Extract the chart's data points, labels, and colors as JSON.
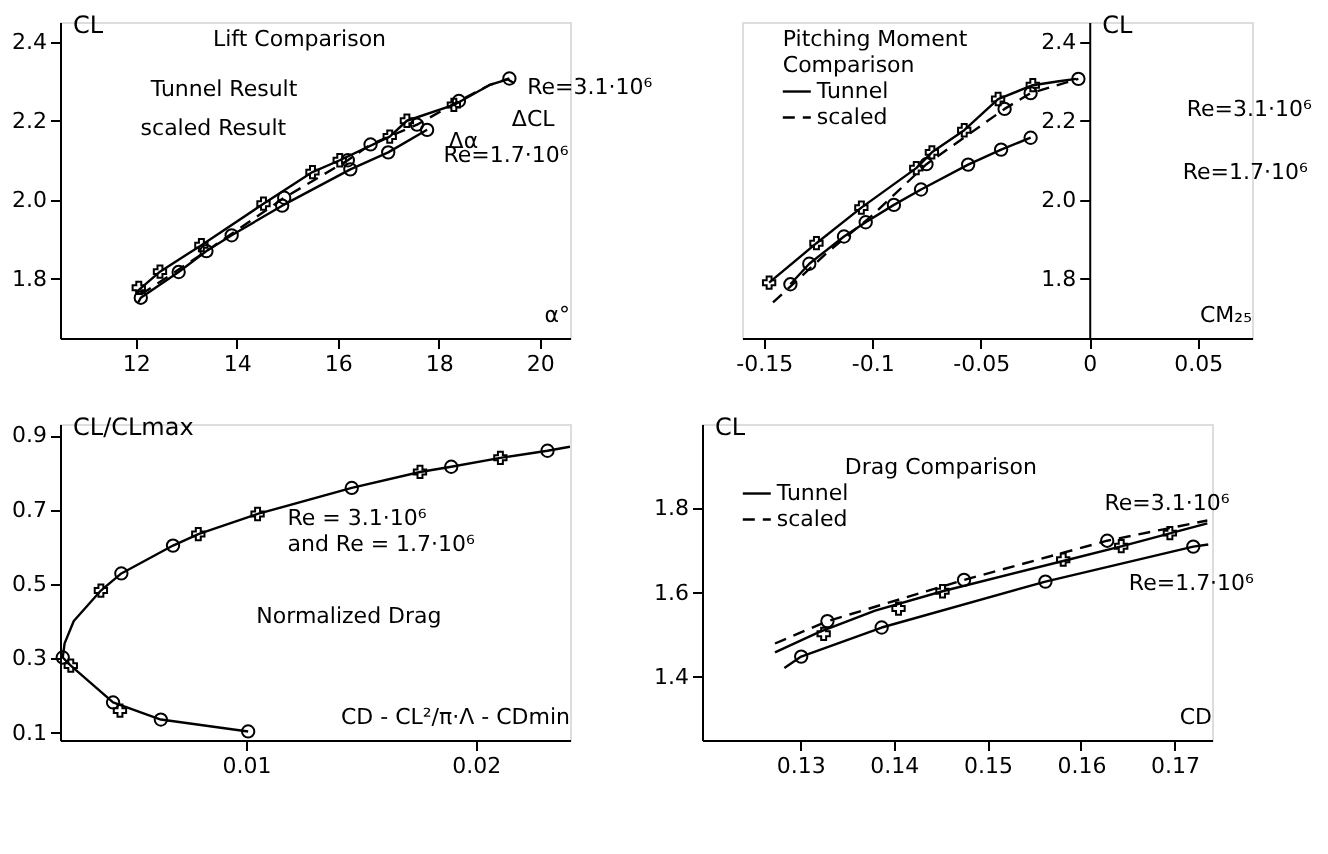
{
  "chart_data": [
    {
      "type": "line",
      "title": "Lift Comparison",
      "xlabel": "α°",
      "ylabel": "CL",
      "xlim": [
        10.5,
        20.6
      ],
      "ylim": [
        1.65,
        2.45
      ],
      "xticks": [
        12,
        14,
        16,
        18,
        20
      ],
      "yticks": [
        1.8,
        {
          "value": 2.0,
          "label": "2.0"
        },
        2.2,
        2.4
      ],
      "grid": false,
      "series": [
        {
          "line_style": "solid",
          "color": "#000000",
          "x": [
            12.0,
            12.48,
            13.3,
            14.53,
            15.5,
            16.04,
            17.03,
            17.37,
            18.3,
            19.0,
            19.36,
            19.5
          ],
          "values": [
            1.765,
            1.818,
            1.885,
            1.99,
            2.07,
            2.1,
            2.16,
            2.2,
            2.24,
            2.29,
            2.305,
            2.295
          ]
        },
        {
          "type": "scatter",
          "marker": "cross",
          "color": "#000000",
          "x": [
            12.06,
            12.48,
            13.3,
            14.53,
            15.5,
            16.04,
            17.03,
            17.37,
            18.3
          ],
          "values": [
            1.777,
            1.818,
            1.885,
            1.99,
            2.07,
            2.1,
            2.16,
            2.2,
            2.24
          ]
        },
        {
          "line_style": "solid",
          "color": "#000000",
          "x": [
            12.05,
            12.1,
            12.85,
            13.4,
            13.9,
            14.9,
            16.25,
            17.0,
            17.77
          ],
          "values": [
            1.74,
            1.752,
            1.817,
            1.87,
            1.91,
            1.985,
            2.077,
            2.12,
            2.177
          ]
        },
        {
          "type": "scatter",
          "marker": "circle",
          "color": "#000000",
          "x": [
            12.1,
            12.85,
            13.4,
            13.9,
            14.9,
            16.25,
            17.0,
            17.77
          ],
          "values": [
            1.752,
            1.817,
            1.87,
            1.91,
            1.985,
            2.077,
            2.12,
            2.177
          ]
        },
        {
          "line_style": "dashed",
          "color": "#000000",
          "x": [
            12.1,
            13.4,
            14.94,
            16.2,
            16.65,
            17.57,
            18.4,
            19.0,
            19.4
          ],
          "values": [
            1.76,
            1.87,
            2.005,
            2.1,
            2.14,
            2.19,
            2.25,
            2.29,
            2.307
          ]
        },
        {
          "type": "scatter",
          "marker": "circle",
          "color": "#000000",
          "x": [
            14.94,
            16.2,
            16.65,
            17.57,
            18.4,
            19.4
          ],
          "values": [
            2.005,
            2.1,
            2.14,
            2.19,
            2.25,
            2.307
          ]
        }
      ],
      "annotations": [
        "Tunnel Result",
        "scaled Result",
        "Re=3.1·10⁶",
        "Re=1.7·10⁶",
        "ΔCL",
        "Δα"
      ]
    },
    {
      "type": "line",
      "title": "Pitching Moment\nComparison",
      "xlabel": "CM₂₅",
      "ylabel": "CL",
      "xlim": [
        -0.16,
        0.075
      ],
      "ylim": [
        1.65,
        2.45
      ],
      "xticks": [
        -0.15,
        -0.1,
        -0.05,
        0,
        0.05
      ],
      "yticks": [
        1.8,
        {
          "value": 2.0,
          "label": "2.0"
        },
        2.2,
        2.4
      ],
      "grid": false,
      "legend": "top left",
      "series": [
        {
          "name": "Tunnel",
          "line_style": "solid",
          "color": "#000000",
          "x": [
            -0.1475,
            -0.1257,
            -0.105,
            -0.0797,
            -0.0725,
            -0.0576,
            -0.042,
            -0.026,
            -0.014,
            -0.006
          ],
          "values": [
            1.79,
            1.89,
            1.98,
            2.08,
            2.12,
            2.176,
            2.255,
            2.29,
            2.3,
            2.306
          ]
        },
        {
          "type": "scatter",
          "marker": "cross",
          "color": "#000000",
          "x": [
            -0.1475,
            -0.1257,
            -0.105,
            -0.0797,
            -0.0725,
            -0.0576,
            -0.042,
            -0.026
          ],
          "values": [
            1.79,
            1.89,
            1.98,
            2.08,
            2.12,
            2.176,
            2.255,
            2.29
          ]
        },
        {
          "name": "scaled",
          "line_style": "dashed",
          "color": "#000000",
          "x": [
            -0.1457,
            -0.12,
            -0.1,
            -0.075,
            -0.039,
            -0.027,
            -0.005
          ],
          "values": [
            1.74,
            1.87,
            1.96,
            2.09,
            2.23,
            2.27,
            2.306
          ]
        },
        {
          "type": "scatter",
          "marker": "circle",
          "color": "#000000",
          "x": [
            -0.075,
            -0.039,
            -0.027,
            -0.005
          ],
          "values": [
            2.09,
            2.23,
            2.27,
            2.306
          ]
        },
        {
          "line_style": "solid",
          "color": "#000000",
          "x": [
            -0.1377,
            -0.129,
            -0.113,
            -0.103,
            -0.09,
            -0.0775,
            -0.0558,
            -0.0406,
            -0.027
          ],
          "values": [
            1.786,
            1.838,
            1.907,
            1.943,
            1.987,
            2.026,
            2.089,
            2.127,
            2.157
          ]
        },
        {
          "type": "scatter",
          "marker": "circle",
          "color": "#000000",
          "x": [
            -0.1377,
            -0.129,
            -0.113,
            -0.103,
            -0.09,
            -0.0775,
            -0.0558,
            -0.0406,
            -0.027
          ],
          "values": [
            1.786,
            1.838,
            1.907,
            1.943,
            1.987,
            2.026,
            2.089,
            2.127,
            2.157
          ]
        }
      ],
      "annotations": [
        "Re=3.1·10⁶",
        "Re=1.7·10⁶"
      ]
    },
    {
      "type": "line",
      "xlabel": "CD - CL²/π·Λ - CDmin",
      "ylabel": "CL/CLmax",
      "xlim": [
        0.0019,
        0.0241
      ],
      "ylim": [
        0.08,
        0.93
      ],
      "xticks": [
        0.01,
        0.02
      ],
      "yticks": [
        0.1,
        0.3,
        0.5,
        0.7,
        0.9
      ],
      "grid": false,
      "series": [
        {
          "line_style": "solid",
          "color": "#000000",
          "x": [
            0.0241,
            0.02312,
            0.02107,
            0.01893,
            0.01757,
            0.0146,
            0.0105,
            0.00792,
            0.00682,
            0.00457,
            0.00368,
            0.0025,
            0.0021,
            0.00202,
            0.00237,
            0.00421,
            0.00629,
            0.01009
          ],
          "values": [
            0.869,
            0.858,
            0.839,
            0.815,
            0.801,
            0.758,
            0.688,
            0.634,
            0.603,
            0.528,
            0.482,
            0.4,
            0.34,
            0.302,
            0.28,
            0.181,
            0.135,
            0.103
          ]
        },
        {
          "type": "scatter",
          "marker": "circle",
          "color": "#000000",
          "x": [
            0.02312,
            0.01893,
            0.0146,
            0.00682,
            0.00457,
            0.00202,
            0.00421,
            0.00629,
            0.01009
          ],
          "values": [
            0.858,
            0.815,
            0.758,
            0.603,
            0.528,
            0.302,
            0.181,
            0.135,
            0.103
          ]
        },
        {
          "type": "scatter",
          "marker": "cross",
          "color": "#000000",
          "x": [
            0.02107,
            0.01757,
            0.0105,
            0.00792,
            0.00368,
            0.00237,
            0.00451
          ],
          "values": [
            0.839,
            0.801,
            0.688,
            0.634,
            0.482,
            0.28,
            0.159
          ]
        }
      ],
      "annotations": [
        "Re = 3.1·10⁶\nand  Re = 1.7·10⁶",
        "Normalized Drag"
      ]
    },
    {
      "type": "line",
      "title": "Drag Comparison",
      "xlabel": "CD",
      "ylabel": "CL",
      "xlim": [
        0.1195,
        0.174
      ],
      "ylim": [
        1.25,
        2.0
      ],
      "xticks": [
        0.13,
        0.14,
        0.15,
        0.16,
        0.17
      ],
      "yticks": [
        1.4,
        1.6,
        1.8
      ],
      "grid": false,
      "legend": "top left",
      "series": [
        {
          "name": "Tunnel",
          "line_style": "solid",
          "color": "#000000",
          "x": [
            0.1273,
            0.132,
            0.138,
            0.1452,
            0.1583,
            0.1644,
            0.1735
          ],
          "values": [
            1.458,
            1.506,
            1.557,
            1.603,
            1.676,
            1.71,
            1.764
          ]
        },
        {
          "type": "scatter",
          "marker": "cross",
          "color": "#000000",
          "x": [
            0.1325,
            0.1405,
            0.1452,
            0.1581,
            0.1643,
            0.1695
          ],
          "values": [
            1.502,
            1.562,
            1.603,
            1.678,
            1.71,
            1.741
          ]
        },
        {
          "name": "scaled",
          "line_style": "dashed",
          "color": "#000000",
          "x": [
            0.1273,
            0.1329,
            0.1475,
            0.1628,
            0.1735
          ],
          "values": [
            1.479,
            1.532,
            1.63,
            1.723,
            1.771
          ]
        },
        {
          "type": "scatter",
          "marker": "circle",
          "color": "#000000",
          "x": [
            0.1329,
            0.1475,
            0.1628
          ],
          "values": [
            1.532,
            1.63,
            1.723
          ]
        },
        {
          "line_style": "solid",
          "color": "#000000",
          "x": [
            0.1283,
            0.1301,
            0.1387,
            0.1562,
            0.172,
            0.1736
          ],
          "values": [
            1.421,
            1.448,
            1.517,
            1.626,
            1.709,
            1.714
          ]
        },
        {
          "type": "scatter",
          "marker": "circle",
          "color": "#000000",
          "x": [
            0.1301,
            0.1387,
            0.1562,
            0.172
          ],
          "values": [
            1.448,
            1.517,
            1.626,
            1.709
          ]
        }
      ],
      "annotations": [
        "Re=3.1·10⁶",
        "Re=1.7·10⁶"
      ]
    }
  ]
}
